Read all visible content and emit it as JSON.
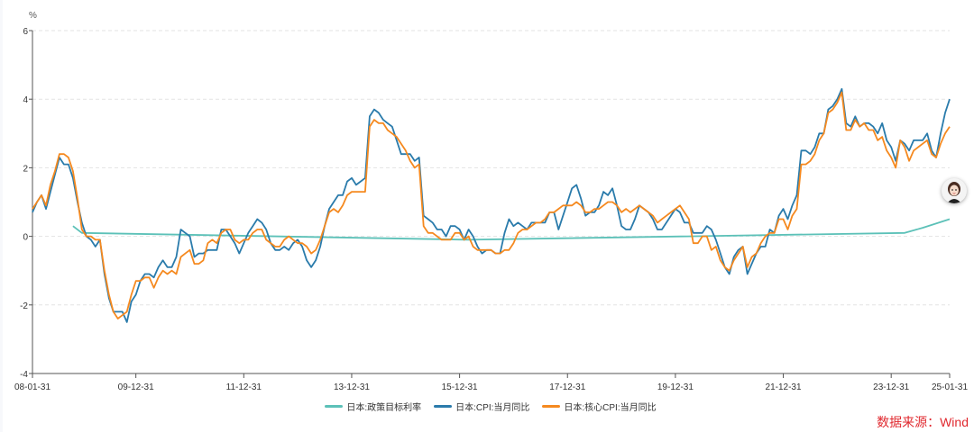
{
  "chart_data": {
    "type": "line",
    "title": "",
    "ylabel": "%",
    "xlabel": "",
    "ylim": [
      -4,
      6
    ],
    "yticks": [
      -4,
      -2,
      0,
      2,
      4,
      6
    ],
    "grid": true,
    "legend_position": "bottom-center",
    "x_start": "2008-01",
    "x_end": "2025-01",
    "x_frequency": "monthly",
    "xticks": [
      {
        "month": "2008-01",
        "label": "08-01-31"
      },
      {
        "month": "2009-12",
        "label": "09-12-31"
      },
      {
        "month": "2011-12",
        "label": "11-12-31"
      },
      {
        "month": "2013-12",
        "label": "13-12-31"
      },
      {
        "month": "2015-12",
        "label": "15-12-31"
      },
      {
        "month": "2017-12",
        "label": "17-12-31"
      },
      {
        "month": "2019-12",
        "label": "19-12-31"
      },
      {
        "month": "2021-12",
        "label": "21-12-31"
      },
      {
        "month": "2023-12",
        "label": "23-12-31"
      },
      {
        "month": "2025-01",
        "label": "25-01-31"
      }
    ],
    "series": [
      {
        "name": "日本:政策目标利率",
        "color": "#5cc1b8",
        "points": [
          [
            "2008-10",
            0.3
          ],
          [
            "2008-12",
            0.1
          ],
          [
            "2016-02",
            -0.1
          ],
          [
            "2024-03",
            0.1
          ],
          [
            "2024-07",
            0.25
          ],
          [
            "2025-01",
            0.5
          ]
        ]
      },
      {
        "name": "日本:CPI:当月同比",
        "color": "#2a7bab",
        "values": [
          0.7,
          1.0,
          1.2,
          0.8,
          1.3,
          1.8,
          2.3,
          2.1,
          2.1,
          1.7,
          1.0,
          0.4,
          0.0,
          -0.1,
          -0.3,
          -0.1,
          -1.1,
          -1.8,
          -2.2,
          -2.2,
          -2.2,
          -2.5,
          -1.9,
          -1.7,
          -1.3,
          -1.1,
          -1.1,
          -1.2,
          -0.9,
          -0.7,
          -0.9,
          -0.9,
          -0.6,
          0.2,
          0.1,
          0.0,
          -0.6,
          -0.5,
          -0.5,
          -0.4,
          -0.4,
          -0.4,
          0.2,
          0.2,
          0.0,
          -0.2,
          -0.5,
          -0.2,
          0.1,
          0.3,
          0.5,
          0.4,
          0.2,
          -0.2,
          -0.4,
          -0.4,
          -0.3,
          -0.4,
          -0.2,
          -0.1,
          -0.3,
          -0.7,
          -0.9,
          -0.7,
          -0.3,
          0.3,
          0.8,
          1.0,
          1.2,
          1.2,
          1.6,
          1.7,
          1.5,
          1.6,
          1.7,
          3.5,
          3.7,
          3.6,
          3.4,
          3.3,
          3.2,
          2.8,
          2.4,
          2.4,
          2.4,
          2.2,
          2.3,
          0.6,
          0.5,
          0.4,
          0.2,
          0.2,
          0.0,
          0.3,
          0.3,
          0.2,
          -0.1,
          0.2,
          0.0,
          -0.3,
          -0.5,
          -0.4,
          -0.4,
          -0.5,
          -0.5,
          0.1,
          0.5,
          0.3,
          0.4,
          0.3,
          0.2,
          0.4,
          0.4,
          0.4,
          0.4,
          0.7,
          0.7,
          0.2,
          0.6,
          1.0,
          1.4,
          1.5,
          1.1,
          0.6,
          0.7,
          0.7,
          0.9,
          1.3,
          1.2,
          1.4,
          0.9,
          0.3,
          0.2,
          0.2,
          0.5,
          0.9,
          0.8,
          0.7,
          0.5,
          0.2,
          0.2,
          0.4,
          0.6,
          0.8,
          0.7,
          0.4,
          0.4,
          0.1,
          0.1,
          0.1,
          0.3,
          0.2,
          -0.1,
          -0.5,
          -0.9,
          -1.1,
          -0.6,
          -0.4,
          -0.3,
          -1.1,
          -0.8,
          -0.5,
          -0.3,
          -0.3,
          0.2,
          0.1,
          0.6,
          0.8,
          0.5,
          0.9,
          1.2,
          2.5,
          2.5,
          2.4,
          2.6,
          3.0,
          3.0,
          3.7,
          3.8,
          4.0,
          4.3,
          3.3,
          3.2,
          3.5,
          3.2,
          3.3,
          3.3,
          3.2,
          3.0,
          3.3,
          2.8,
          2.6,
          2.2,
          2.8,
          2.7,
          2.5,
          2.8,
          2.8,
          2.8,
          3.0,
          2.5,
          2.3,
          3.0,
          3.6,
          4.0
        ]
      },
      {
        "name": "日本:核心CPI:当月同比",
        "color": "#f5891f",
        "values": [
          0.8,
          1.0,
          1.2,
          0.9,
          1.5,
          1.9,
          2.4,
          2.4,
          2.3,
          1.9,
          1.1,
          0.2,
          0.0,
          0.0,
          -0.1,
          -0.1,
          -1.0,
          -1.7,
          -2.2,
          -2.4,
          -2.3,
          -2.2,
          -1.7,
          -1.3,
          -1.3,
          -1.2,
          -1.2,
          -1.5,
          -1.2,
          -1.0,
          -1.1,
          -1.0,
          -1.1,
          -0.6,
          -0.5,
          -0.4,
          -0.8,
          -0.8,
          -0.7,
          -0.2,
          -0.1,
          -0.2,
          0.1,
          0.2,
          0.2,
          -0.1,
          -0.2,
          -0.1,
          -0.1,
          0.1,
          0.2,
          0.2,
          -0.1,
          -0.2,
          -0.3,
          -0.3,
          -0.1,
          0.0,
          -0.1,
          -0.2,
          -0.2,
          -0.3,
          -0.5,
          -0.4,
          -0.1,
          0.3,
          0.7,
          0.8,
          0.7,
          0.9,
          1.2,
          1.3,
          1.3,
          1.3,
          1.3,
          3.2,
          3.4,
          3.3,
          3.3,
          3.1,
          3.0,
          2.9,
          2.7,
          2.5,
          2.2,
          2.0,
          2.1,
          0.3,
          0.1,
          0.1,
          0.0,
          -0.1,
          -0.1,
          -0.1,
          0.1,
          0.1,
          -0.1,
          0.0,
          -0.3,
          -0.4,
          -0.4,
          -0.4,
          -0.4,
          -0.5,
          -0.5,
          -0.4,
          -0.4,
          -0.2,
          0.1,
          0.2,
          0.2,
          0.3,
          0.4,
          0.4,
          0.5,
          0.7,
          0.7,
          0.8,
          0.9,
          0.9,
          0.9,
          1.0,
          0.9,
          0.7,
          0.7,
          0.8,
          0.8,
          0.9,
          1.0,
          1.0,
          0.9,
          0.7,
          0.8,
          0.7,
          0.8,
          0.9,
          0.8,
          0.7,
          0.6,
          0.4,
          0.5,
          0.6,
          0.7,
          0.8,
          0.9,
          0.7,
          0.5,
          -0.2,
          -0.2,
          0.0,
          0.0,
          -0.4,
          -0.3,
          -0.7,
          -0.9,
          -1.0,
          -0.7,
          -0.5,
          -0.3,
          -0.9,
          -0.6,
          -0.5,
          -0.2,
          0.0,
          0.1,
          0.1,
          0.5,
          0.5,
          0.2,
          0.6,
          0.8,
          2.1,
          2.1,
          2.2,
          2.4,
          2.8,
          3.0,
          3.6,
          3.7,
          3.9,
          4.2,
          3.1,
          3.1,
          3.4,
          3.2,
          3.3,
          3.1,
          3.1,
          2.8,
          2.9,
          2.5,
          2.3,
          2.0,
          2.8,
          2.6,
          2.2,
          2.5,
          2.6,
          2.7,
          2.8,
          2.4,
          2.3,
          2.7,
          3.0,
          3.2
        ]
      }
    ]
  },
  "source_note": "数据来源：Wind",
  "icons": {
    "assistant": "assistant-avatar-icon"
  }
}
